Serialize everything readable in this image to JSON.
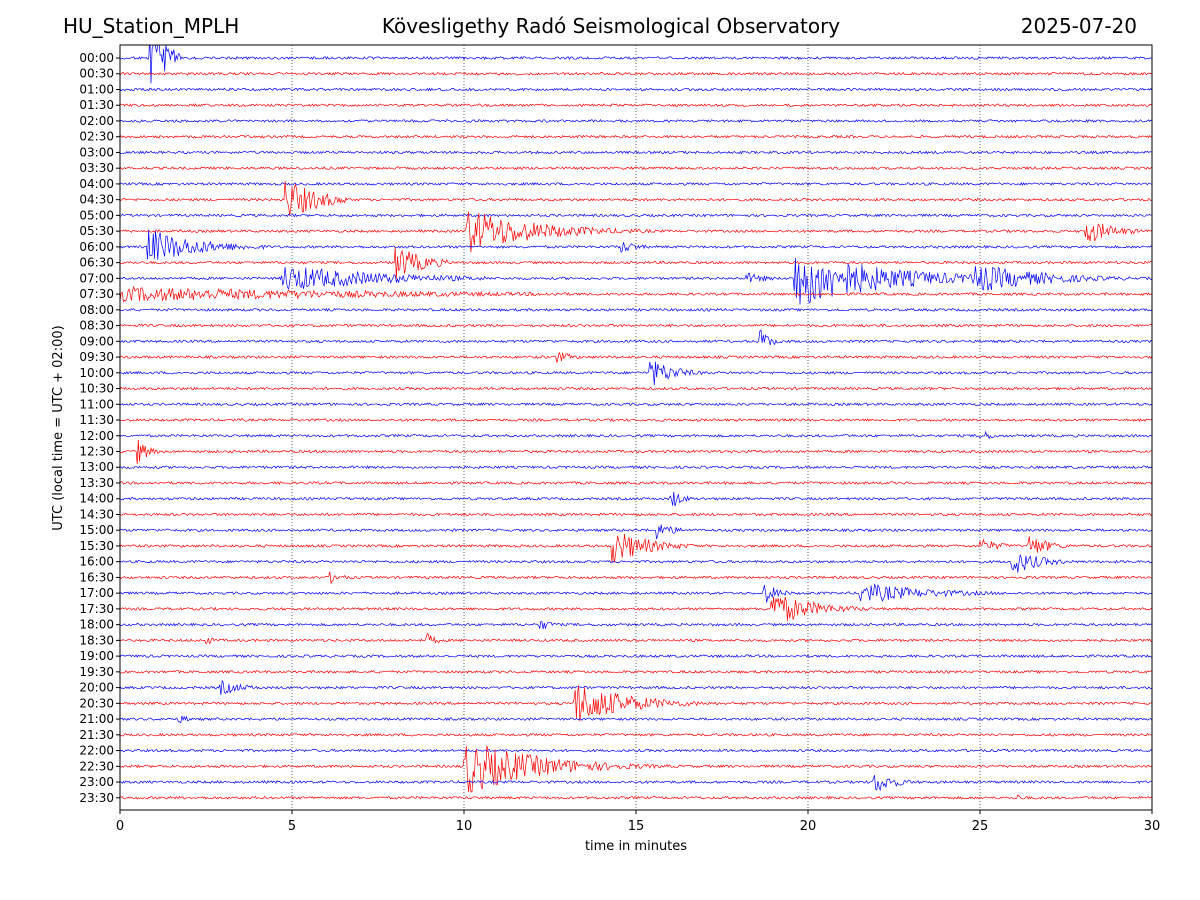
{
  "header": {
    "station": "HU_Station_MPLH",
    "title": "Kövesligethy Radó Seismological Observatory",
    "date": "2025-07-20"
  },
  "chart_data": {
    "type": "line",
    "title": "Kövesligethy Radó Seismological Observatory",
    "xlabel": "time in minutes",
    "ylabel": "UTC (local time = UTC + 02:00)",
    "xlim": [
      0,
      30
    ],
    "xticks": [
      0,
      5,
      10,
      15,
      20,
      25,
      30
    ],
    "grid": "vertical dotted at x ticks",
    "rows": [
      "00:00",
      "00:30",
      "01:00",
      "01:30",
      "02:00",
      "02:30",
      "03:00",
      "03:30",
      "04:00",
      "04:30",
      "05:00",
      "05:30",
      "06:00",
      "06:30",
      "07:00",
      "07:30",
      "08:00",
      "08:30",
      "09:00",
      "09:30",
      "10:00",
      "10:30",
      "11:00",
      "11:30",
      "12:00",
      "12:30",
      "13:00",
      "13:30",
      "14:00",
      "14:30",
      "15:00",
      "15:30",
      "16:00",
      "16:30",
      "17:00",
      "17:30",
      "18:00",
      "18:30",
      "19:00",
      "19:30",
      "20:00",
      "20:30",
      "21:00",
      "21:30",
      "22:00",
      "22:30",
      "23:00",
      "23:30"
    ],
    "trace_colors": [
      "#0000ff",
      "#ff0000"
    ],
    "events": [
      {
        "row": 0,
        "t": 0.85,
        "amp": 1.9,
        "dur": 0.9,
        "decay": 0.6
      },
      {
        "row": 12,
        "t": 0.8,
        "amp": 1.2,
        "dur": 3.5,
        "decay": 1.5
      },
      {
        "row": 15,
        "t": 0.0,
        "amp": 0.5,
        "dur": 13.0,
        "decay": 8.0
      },
      {
        "row": 14,
        "t": 4.7,
        "amp": 0.9,
        "dur": 6.0,
        "decay": 3.0
      },
      {
        "row": 9,
        "t": 4.8,
        "amp": 1.4,
        "dur": 1.8,
        "decay": 1.0
      },
      {
        "row": 13,
        "t": 8.0,
        "amp": 1.2,
        "dur": 1.5,
        "decay": 0.8
      },
      {
        "row": 11,
        "t": 10.05,
        "amp": 1.5,
        "dur": 5.5,
        "decay": 2.0
      },
      {
        "row": 14,
        "t": 19.6,
        "amp": 2.0,
        "dur": 9.0,
        "decay": 2.5
      },
      {
        "row": 14,
        "t": 24.8,
        "amp": 1.0,
        "dur": 5.0,
        "decay": 2.0
      },
      {
        "row": 11,
        "t": 28.05,
        "amp": 0.9,
        "dur": 1.9,
        "decay": 0.8
      },
      {
        "row": 12,
        "t": 14.5,
        "amp": 0.5,
        "dur": 1.2,
        "decay": 0.5
      },
      {
        "row": 14,
        "t": 18.2,
        "amp": 0.4,
        "dur": 1.5,
        "decay": 0.6
      },
      {
        "row": 18,
        "t": 18.6,
        "amp": 0.9,
        "dur": 0.6,
        "decay": 0.3
      },
      {
        "row": 19,
        "t": 12.7,
        "amp": 0.4,
        "dur": 1.5,
        "decay": 0.5
      },
      {
        "row": 20,
        "t": 15.4,
        "amp": 1.0,
        "dur": 2.0,
        "decay": 0.7
      },
      {
        "row": 24,
        "t": 25.0,
        "amp": 0.4,
        "dur": 1.0,
        "decay": 0.4
      },
      {
        "row": 25,
        "t": 0.5,
        "amp": 0.9,
        "dur": 0.8,
        "decay": 0.3
      },
      {
        "row": 28,
        "t": 16.0,
        "amp": 0.8,
        "dur": 0.6,
        "decay": 0.3
      },
      {
        "row": 30,
        "t": 15.6,
        "amp": 0.6,
        "dur": 1.2,
        "decay": 0.5
      },
      {
        "row": 31,
        "t": 14.3,
        "amp": 1.2,
        "dur": 2.5,
        "decay": 1.0
      },
      {
        "row": 31,
        "t": 25.0,
        "amp": 0.5,
        "dur": 1.5,
        "decay": 0.6
      },
      {
        "row": 31,
        "t": 26.4,
        "amp": 0.8,
        "dur": 1.5,
        "decay": 0.6
      },
      {
        "row": 32,
        "t": 25.9,
        "amp": 0.9,
        "dur": 2.0,
        "decay": 0.8
      },
      {
        "row": 33,
        "t": 6.1,
        "amp": 0.4,
        "dur": 1.0,
        "decay": 0.4
      },
      {
        "row": 34,
        "t": 18.7,
        "amp": 0.8,
        "dur": 1.0,
        "decay": 0.4
      },
      {
        "row": 34,
        "t": 21.5,
        "amp": 0.7,
        "dur": 5.0,
        "decay": 2.0
      },
      {
        "row": 35,
        "t": 18.9,
        "amp": 1.2,
        "dur": 3.0,
        "decay": 1.2
      },
      {
        "row": 36,
        "t": 12.2,
        "amp": 0.4,
        "dur": 0.8,
        "decay": 0.4
      },
      {
        "row": 37,
        "t": 2.5,
        "amp": 0.3,
        "dur": 0.8,
        "decay": 0.3
      },
      {
        "row": 37,
        "t": 8.9,
        "amp": 0.5,
        "dur": 0.6,
        "decay": 0.3
      },
      {
        "row": 40,
        "t": 2.9,
        "amp": 0.5,
        "dur": 1.8,
        "decay": 0.7
      },
      {
        "row": 41,
        "t": 13.2,
        "amp": 1.5,
        "dur": 6.0,
        "decay": 1.5
      },
      {
        "row": 42,
        "t": 1.7,
        "amp": 0.3,
        "dur": 1.0,
        "decay": 0.4
      },
      {
        "row": 45,
        "t": 10.0,
        "amp": 1.9,
        "dur": 8.0,
        "decay": 2.0
      },
      {
        "row": 46,
        "t": 21.9,
        "amp": 0.8,
        "dur": 1.5,
        "decay": 0.6
      },
      {
        "row": 47,
        "t": 26.0,
        "amp": 0.3,
        "dur": 0.8,
        "decay": 0.3
      }
    ]
  }
}
